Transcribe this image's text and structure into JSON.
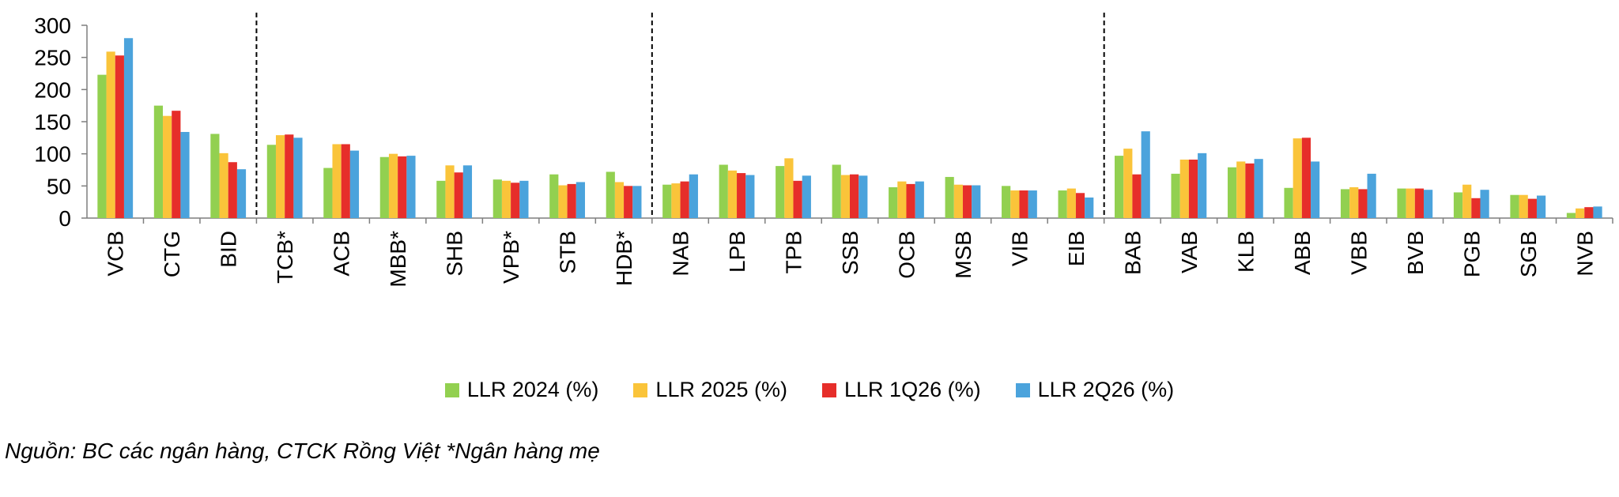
{
  "chart_data": {
    "type": "bar",
    "categories": [
      "VCB",
      "CTG",
      "BID",
      "TCB*",
      "ACB",
      "MBB*",
      "SHB",
      "VPB*",
      "STB",
      "HDB*",
      "NAB",
      "LPB",
      "TPB",
      "SSB",
      "OCB",
      "MSB",
      "VIB",
      "EIB",
      "BAB",
      "VAB",
      "KLB",
      "ABB",
      "VBB",
      "BVB",
      "PGB",
      "SGB",
      "NVB"
    ],
    "series": [
      {
        "name": "LLR 2024 (%)",
        "color": "#92D050",
        "values": [
          223,
          175,
          131,
          114,
          78,
          95,
          58,
          60,
          68,
          72,
          52,
          83,
          81,
          83,
          48,
          64,
          50,
          43,
          97,
          69,
          79,
          47,
          45,
          46,
          40,
          36,
          8
        ]
      },
      {
        "name": "LLR 2025 (%)",
        "color": "#FAC43A",
        "values": [
          259,
          159,
          101,
          129,
          115,
          100,
          82,
          58,
          51,
          56,
          54,
          74,
          93,
          67,
          57,
          52,
          43,
          46,
          108,
          91,
          88,
          124,
          48,
          46,
          52,
          36,
          15
        ]
      },
      {
        "name": "LLR 1Q26 (%)",
        "color": "#E62E2A",
        "values": [
          253,
          167,
          87,
          130,
          115,
          96,
          71,
          55,
          53,
          50,
          57,
          70,
          58,
          68,
          53,
          51,
          43,
          39,
          68,
          91,
          85,
          125,
          45,
          46,
          31,
          30,
          17
        ]
      },
      {
        "name": "LLR 2Q26 (%)",
        "color": "#4BA3DC",
        "values": [
          280,
          134,
          76,
          125,
          105,
          97,
          82,
          58,
          56,
          50,
          68,
          67,
          66,
          66,
          57,
          51,
          43,
          32,
          135,
          101,
          92,
          88,
          69,
          44,
          44,
          35,
          18
        ]
      }
    ],
    "yticks": [
      0,
      50,
      100,
      150,
      200,
      250,
      300
    ],
    "ylim": [
      0,
      300
    ],
    "group_separators_after": [
      "BID",
      "HDB*",
      "EIB"
    ],
    "legend_position": "bottom",
    "grid": false
  },
  "footnote": "Nguồn: BC các ngân hàng, CTCK Rồng Việt *Ngân hàng mẹ"
}
